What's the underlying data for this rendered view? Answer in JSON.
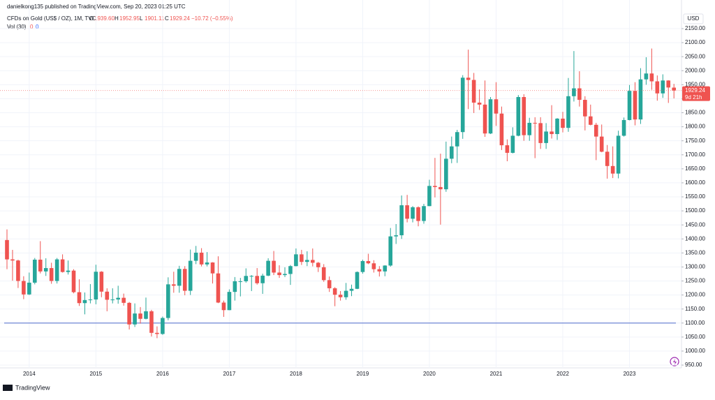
{
  "chart_data": {
    "type": "candlestick",
    "header": "danielkong135 published on TradingView.com, Sep 20, 2023 01:25 UTC",
    "symbol": "CFDs on Gold (US$ / OZ), 1M, TVC",
    "legend_ohlc": [
      {
        "key": "O",
        "text": "1939.60"
      },
      {
        "key": "H",
        "text": "1952.95"
      },
      {
        "key": "L",
        "text": "1901.11"
      },
      {
        "key": "C",
        "text": "1929.24"
      }
    ],
    "change": "−10.72 (−0.55%)",
    "volume_label": "Vol (30)",
    "volume_values": [
      "0",
      "0"
    ],
    "currency": "USD",
    "last_price": {
      "value": 1929.24,
      "label": "1929.24"
    },
    "countdown": "9d 21h",
    "brand": "TradingView",
    "up_color": "#26a69a",
    "down_color": "#ef5350",
    "horizontal_line": 1100,
    "horizontal_line_color": "#6f86d6",
    "grid": true,
    "categories": [
      null,
      null,
      null,
      null,
      "2014",
      null,
      null,
      null,
      null,
      null,
      null,
      null,
      null,
      null,
      null,
      null,
      "2015",
      null,
      null,
      null,
      null,
      null,
      null,
      null,
      null,
      null,
      null,
      null,
      "2016",
      null,
      null,
      null,
      null,
      null,
      null,
      null,
      null,
      null,
      null,
      null,
      "2017",
      null,
      null,
      null,
      null,
      null,
      null,
      null,
      null,
      null,
      null,
      null,
      "2018",
      null,
      null,
      null,
      null,
      null,
      null,
      null,
      null,
      null,
      null,
      null,
      "2019",
      null,
      null,
      null,
      null,
      null,
      null,
      null,
      null,
      null,
      null,
      null,
      "2020",
      null,
      null,
      null,
      null,
      null,
      null,
      null,
      null,
      null,
      null,
      null,
      "2021",
      null,
      null,
      null,
      null,
      null,
      null,
      null,
      null,
      null,
      null,
      null,
      "2022",
      null,
      null,
      null,
      null,
      null,
      null,
      null,
      null,
      null,
      null,
      null,
      "2023",
      null,
      null,
      null,
      null,
      null,
      null,
      null,
      null
    ],
    "open": [
      1396,
      1327,
      1323,
      1250,
      1202,
      1244,
      1326,
      1284,
      1296,
      1250,
      1327,
      1282,
      1287,
      1210,
      1171,
      1182,
      1184,
      1283,
      1212,
      1183,
      1184,
      1190,
      1172,
      1095,
      1134,
      1115,
      1142,
      1065,
      1061,
      1118,
      1238,
      1233,
      1293,
      1215,
      1322,
      1351,
      1309,
      1316,
      1277,
      1173,
      1146,
      1211,
      1249,
      1249,
      1268,
      1268,
      1242,
      1269,
      1322,
      1280,
      1271,
      1275,
      1303,
      1345,
      1318,
      1325,
      1315,
      1299,
      1253,
      1224,
      1201,
      1192,
      1215,
      1222,
      1282,
      1321,
      1313,
      1292,
      1284,
      1305,
      1409,
      1413,
      1520,
      1472,
      1513,
      1464,
      1517,
      1589,
      1585,
      1577,
      1686,
      1730,
      1781,
      1975,
      1967,
      1886,
      1879,
      1776,
      1898,
      1847,
      1734,
      1707,
      1768,
      1906,
      1770,
      1814,
      1813,
      1742,
      1783,
      1774,
      1829,
      1796,
      1909,
      1937,
      1896,
      1837,
      1807,
      1765,
      1711,
      1660,
      1633,
      1768,
      1824,
      1928,
      1826,
      1969,
      1990,
      1962,
      1919,
      1965,
      1939.6
    ],
    "high": [
      1434,
      1361,
      1326,
      1267,
      1280,
      1332,
      1392,
      1331,
      1315,
      1332,
      1345,
      1323,
      1292,
      1256,
      1209,
      1239,
      1308,
      1285,
      1224,
      1224,
      1233,
      1205,
      1175,
      1170,
      1157,
      1191,
      1147,
      1088,
      1123,
      1263,
      1283,
      1304,
      1303,
      1362,
      1375,
      1367,
      1353,
      1317,
      1338,
      1180,
      1220,
      1264,
      1261,
      1295,
      1271,
      1296,
      1276,
      1331,
      1357,
      1306,
      1299,
      1307,
      1366,
      1361,
      1356,
      1366,
      1318,
      1310,
      1266,
      1228,
      1214,
      1243,
      1237,
      1284,
      1326,
      1347,
      1324,
      1303,
      1306,
      1439,
      1453,
      1555,
      1557,
      1517,
      1516,
      1525,
      1611,
      1689,
      1704,
      1747,
      1765,
      1789,
      1984,
      2075,
      1992,
      1933,
      1965,
      1906,
      1959,
      1872,
      1755,
      1798,
      1913,
      1916,
      1832,
      1834,
      1834,
      1813,
      1877,
      1831,
      1853,
      1974,
      2070,
      1998,
      1909,
      1879,
      1814,
      1808,
      1735,
      1730,
      1786,
      1833,
      1949,
      1959,
      2009,
      2048,
      2079,
      1983,
      1987,
      1966,
      1952.95
    ],
    "low": [
      1292,
      1251,
      1225,
      1185,
      1200,
      1238,
      1277,
      1268,
      1240,
      1241,
      1280,
      1273,
      1206,
      1161,
      1131,
      1170,
      1167,
      1192,
      1142,
      1170,
      1169,
      1162,
      1077,
      1086,
      1098,
      1113,
      1052,
      1046,
      1058,
      1110,
      1208,
      1208,
      1199,
      1200,
      1310,
      1302,
      1302,
      1241,
      1171,
      1122,
      1146,
      1180,
      1195,
      1244,
      1214,
      1237,
      1204,
      1267,
      1271,
      1261,
      1264,
      1236,
      1302,
      1307,
      1303,
      1302,
      1282,
      1247,
      1211,
      1160,
      1180,
      1183,
      1196,
      1221,
      1276,
      1310,
      1280,
      1266,
      1267,
      1301,
      1382,
      1400,
      1459,
      1459,
      1445,
      1454,
      1517,
      1548,
      1451,
      1568,
      1670,
      1671,
      1757,
      1863,
      1849,
      1860,
      1764,
      1774,
      1803,
      1717,
      1677,
      1705,
      1766,
      1750,
      1750,
      1688,
      1721,
      1721,
      1758,
      1753,
      1780,
      1782,
      1890,
      1872,
      1787,
      1805,
      1681,
      1709,
      1615,
      1617,
      1616,
      1765,
      1823,
      1805,
      1810,
      1950,
      1932,
      1893,
      1903,
      1885,
      1901.11
    ],
    "close": [
      1327,
      1323,
      1250,
      1202,
      1244,
      1326,
      1284,
      1296,
      1250,
      1327,
      1282,
      1287,
      1210,
      1171,
      1182,
      1184,
      1283,
      1212,
      1183,
      1184,
      1190,
      1172,
      1095,
      1134,
      1115,
      1142,
      1065,
      1061,
      1118,
      1238,
      1233,
      1293,
      1215,
      1322,
      1351,
      1309,
      1316,
      1277,
      1173,
      1146,
      1211,
      1249,
      1249,
      1268,
      1268,
      1242,
      1269,
      1322,
      1280,
      1271,
      1275,
      1303,
      1345,
      1318,
      1325,
      1315,
      1299,
      1253,
      1224,
      1201,
      1192,
      1215,
      1222,
      1282,
      1321,
      1313,
      1292,
      1284,
      1305,
      1409,
      1413,
      1520,
      1472,
      1513,
      1464,
      1517,
      1589,
      1585,
      1577,
      1686,
      1730,
      1781,
      1975,
      1967,
      1886,
      1879,
      1776,
      1898,
      1847,
      1734,
      1707,
      1768,
      1906,
      1770,
      1814,
      1813,
      1742,
      1783,
      1774,
      1829,
      1796,
      1909,
      1937,
      1896,
      1837,
      1807,
      1765,
      1711,
      1660,
      1633,
      1768,
      1824,
      1928,
      1826,
      1969,
      1990,
      1962,
      1919,
      1965,
      1940,
      1929.24
    ],
    "ylim": [
      950,
      2150
    ],
    "yticks": [
      {
        "value": 950,
        "label": "950.00"
      },
      {
        "value": 1000,
        "label": "1000.00"
      },
      {
        "value": 1050,
        "label": "1050.00"
      },
      {
        "value": 1100,
        "label": "1100.00"
      },
      {
        "value": 1150,
        "label": "1150.00"
      },
      {
        "value": 1200,
        "label": "1200.00"
      },
      {
        "value": 1250,
        "label": "1250.00"
      },
      {
        "value": 1300,
        "label": "1300.00"
      },
      {
        "value": 1350,
        "label": "1350.00"
      },
      {
        "value": 1400,
        "label": "1400.00"
      },
      {
        "value": 1450,
        "label": "1450.00"
      },
      {
        "value": 1500,
        "label": "1500.00"
      },
      {
        "value": 1550,
        "label": "1550.00"
      },
      {
        "value": 1600,
        "label": "1600.00"
      },
      {
        "value": 1650,
        "label": "1650.00"
      },
      {
        "value": 1700,
        "label": "1700.00"
      },
      {
        "value": 1750,
        "label": "1750.00"
      },
      {
        "value": 1800,
        "label": "1800.00"
      },
      {
        "value": 1850,
        "label": "1850.00"
      },
      {
        "value": 1900,
        "label": "1900.00"
      },
      {
        "value": 1950,
        "label": "1950.00"
      },
      {
        "value": 2000,
        "label": "2000.00"
      },
      {
        "value": 2050,
        "label": "2050.00"
      },
      {
        "value": 2100,
        "label": "2100.00"
      },
      {
        "value": 2150,
        "label": "2150.00"
      }
    ]
  }
}
